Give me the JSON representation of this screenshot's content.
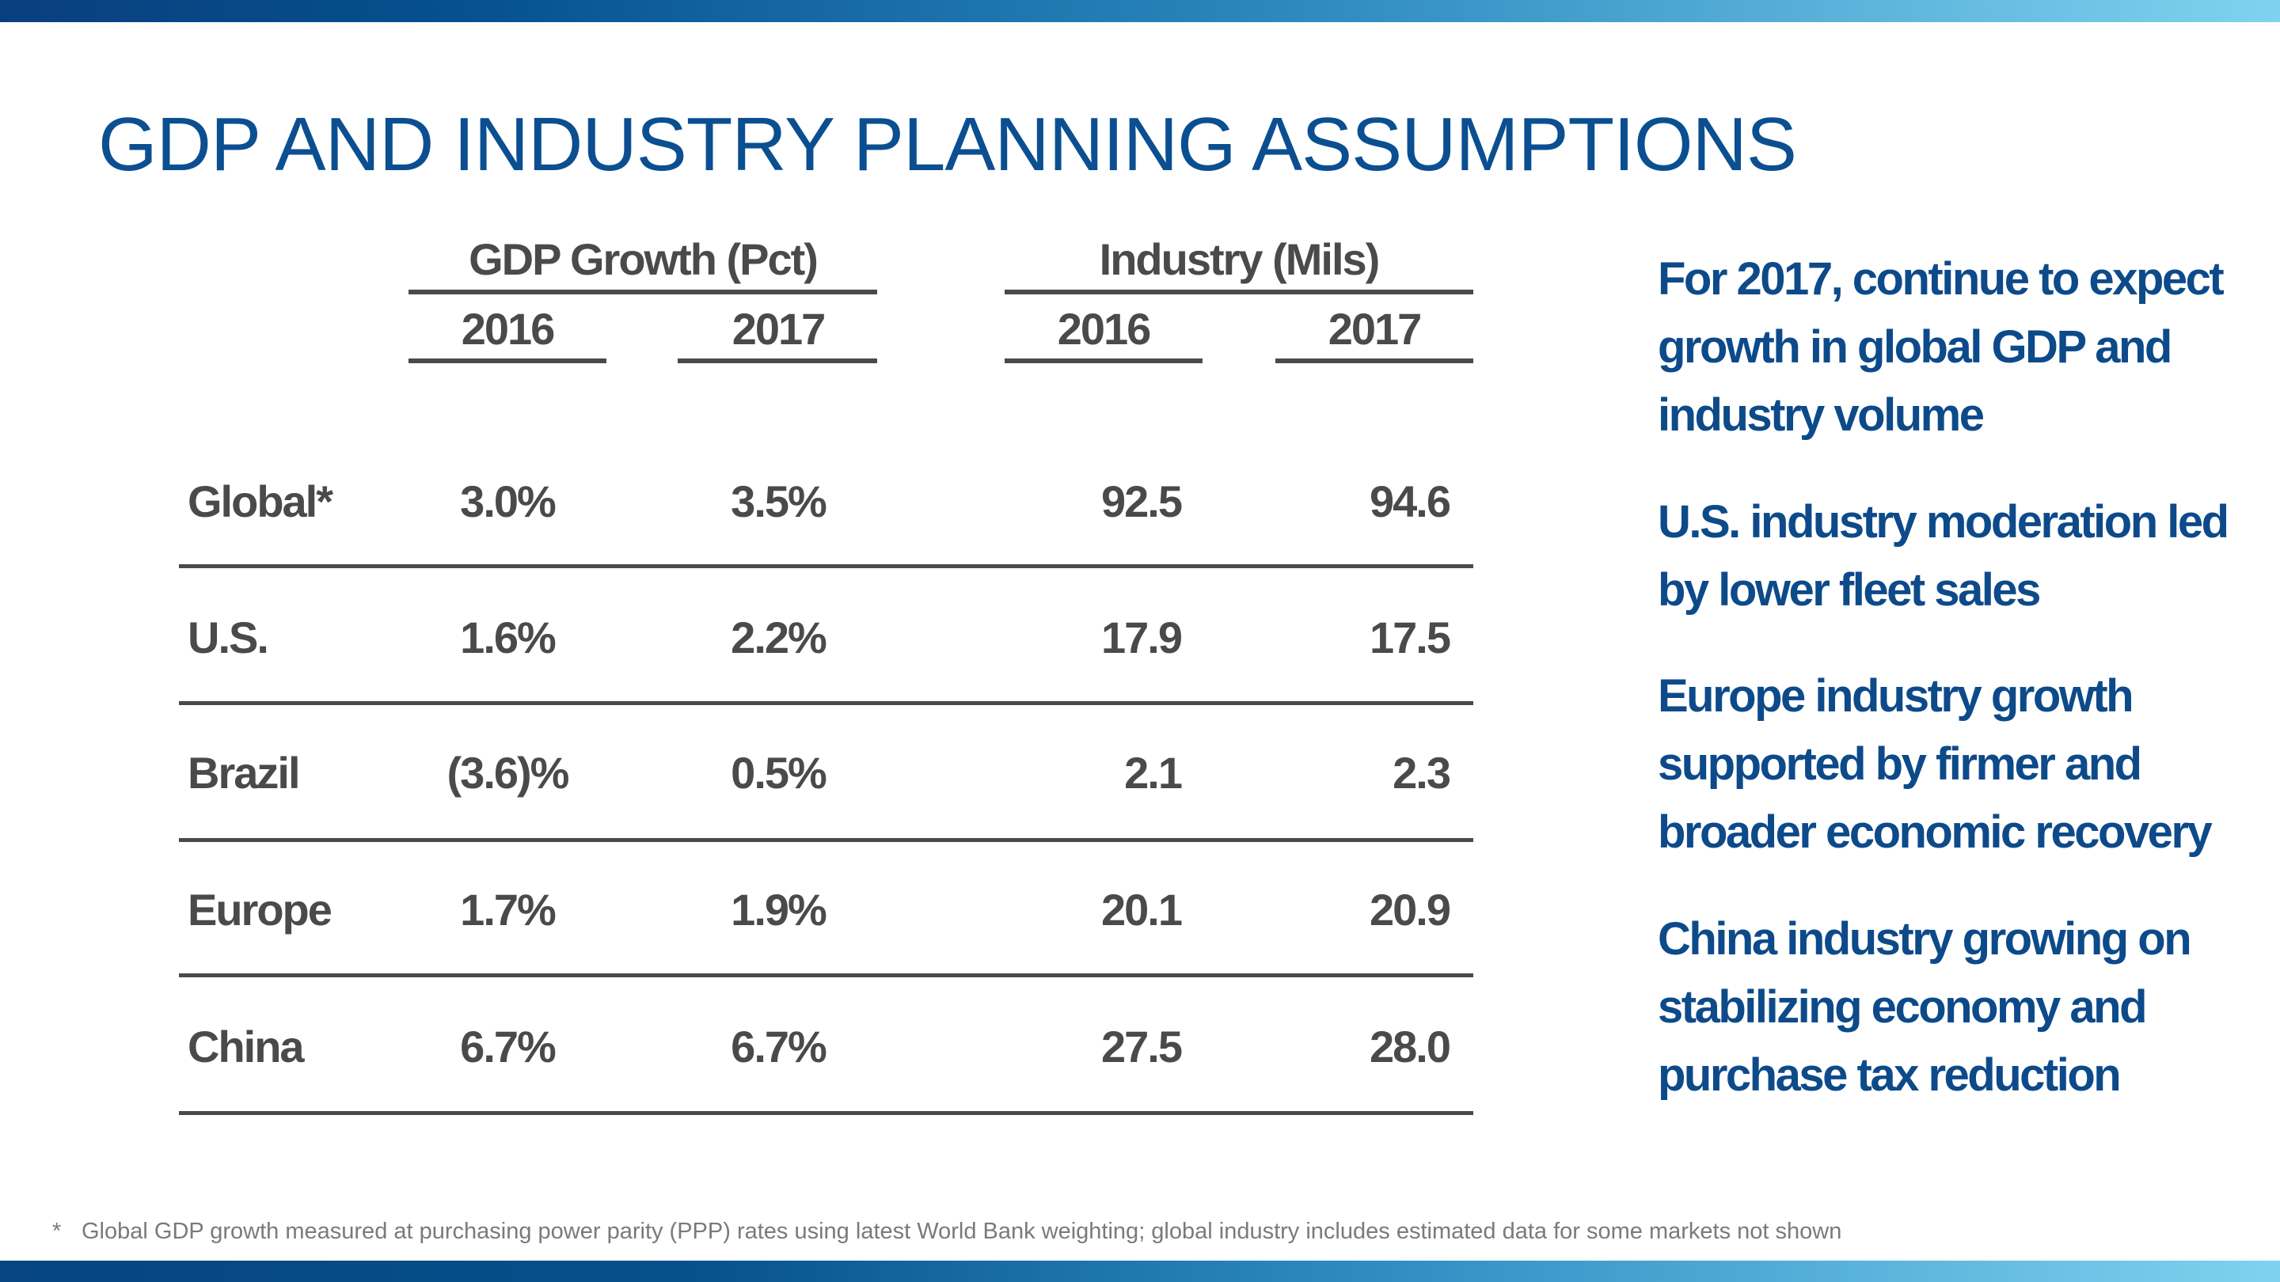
{
  "title": "GDP AND INDUSTRY PLANNING ASSUMPTIONS",
  "table": {
    "groups": [
      "GDP Growth (Pct)",
      "Industry (Mils)"
    ],
    "years": [
      "2016",
      "2017",
      "2016",
      "2017"
    ],
    "rows": [
      {
        "label": "Global*",
        "values": [
          "3.0%",
          "3.5%",
          "92.5",
          "94.6"
        ]
      },
      {
        "label": "U.S.",
        "values": [
          "1.6%",
          "2.2%",
          "17.9",
          "17.5"
        ]
      },
      {
        "label": "Brazil",
        "values": [
          "(3.6)%",
          "0.5%",
          "2.1",
          "2.3"
        ]
      },
      {
        "label": "Europe",
        "values": [
          "1.7%",
          "1.9%",
          "20.1",
          "20.9"
        ]
      },
      {
        "label": "China",
        "values": [
          "6.7%",
          "6.7%",
          "27.5",
          "28.0"
        ]
      }
    ]
  },
  "bullets": [
    "For 2017, continue to expect growth in global GDP and industry volume",
    "U.S. industry moderation led by lower fleet sales",
    "Europe industry growth supported by firmer and broader economic recovery",
    "China industry growing on stabilizing economy and purchase tax reduction"
  ],
  "footnote": {
    "marker": "*",
    "text": "Global GDP growth measured at purchasing power parity (PPP) rates using latest World Bank weighting; global industry includes estimated data for some markets not shown"
  },
  "colors": {
    "title": "#0b4f91",
    "bullets": "#0d4a8a",
    "table_text": "#4a4a4a"
  }
}
